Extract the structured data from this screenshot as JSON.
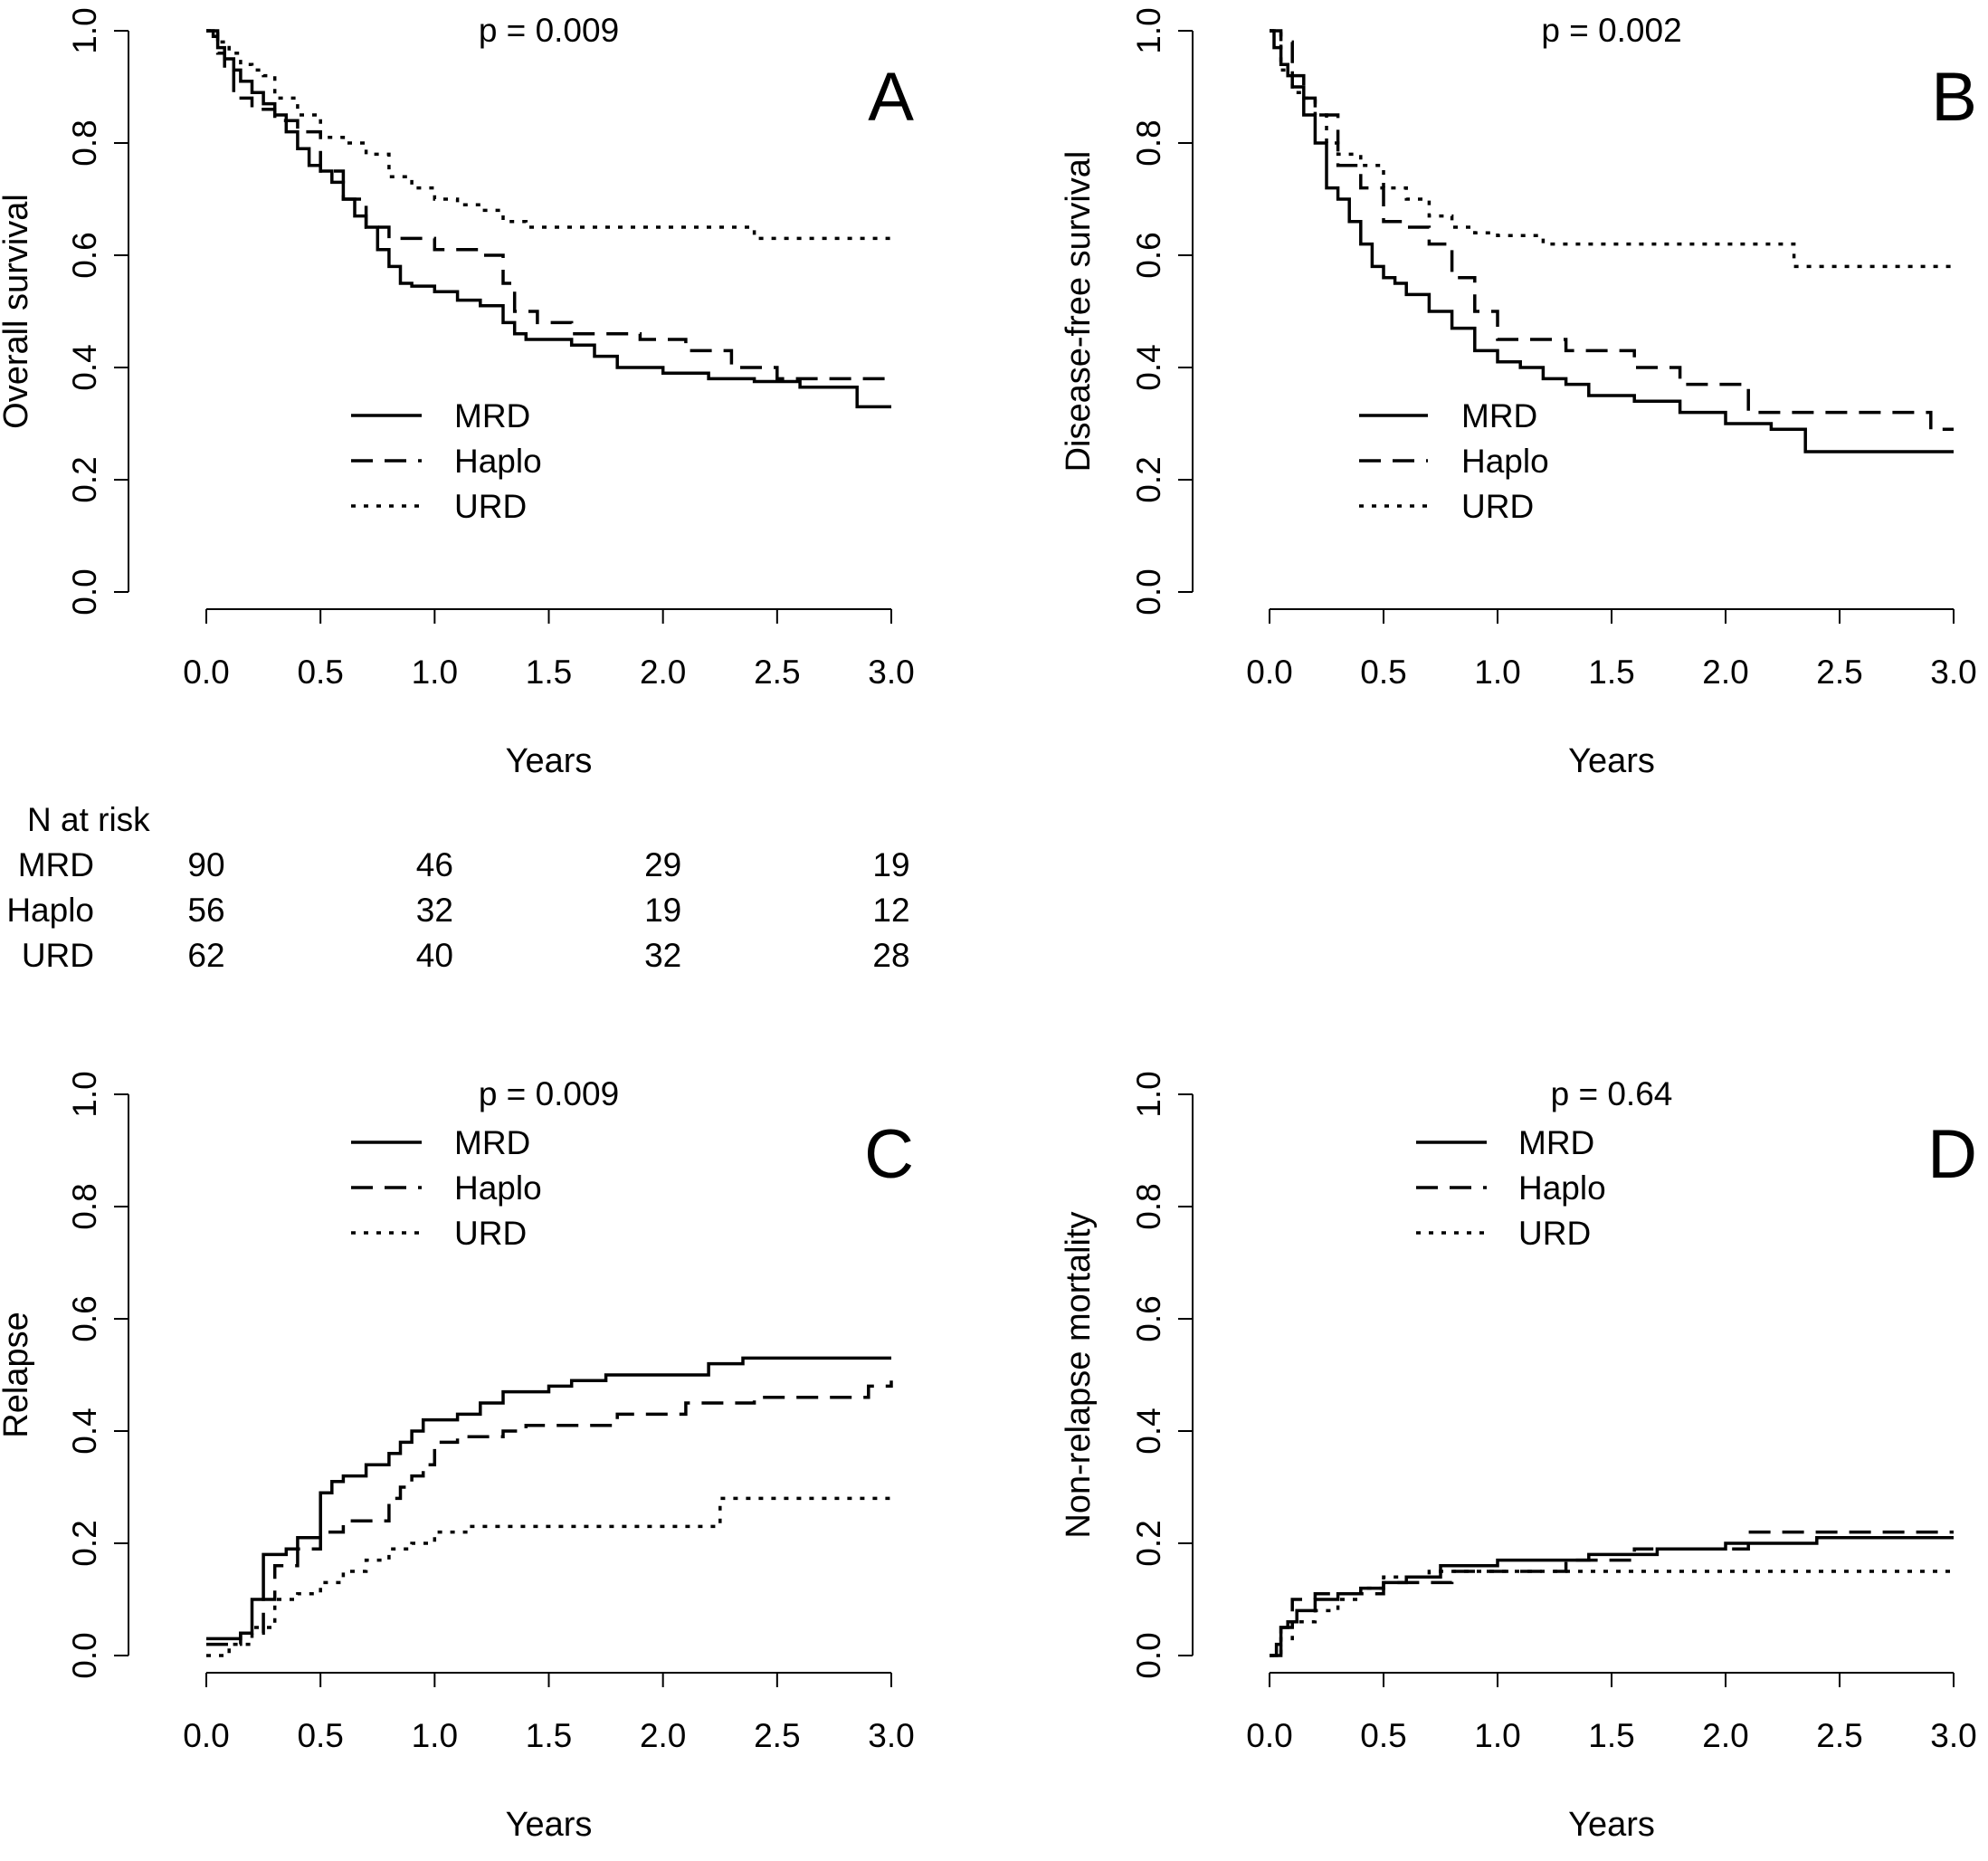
{
  "chart_data": [
    {
      "id": "A",
      "type": "line",
      "step": true,
      "panel_label": "A",
      "title": "p = 0.009",
      "xlabel": "Years",
      "ylabel": "Overall survival",
      "xlim": [
        0,
        3
      ],
      "ylim": [
        0,
        1
      ],
      "xticks": [
        "0.0",
        "0.5",
        "1.0",
        "1.5",
        "2.0",
        "2.5",
        "3.0"
      ],
      "yticks": [
        "0.0",
        "0.2",
        "0.4",
        "0.6",
        "0.8",
        "1.0"
      ],
      "legend": {
        "position": "center-left",
        "entries": [
          "MRD",
          "Haplo",
          "URD"
        ]
      },
      "series": [
        {
          "name": "MRD",
          "linestyle": "solid",
          "x": [
            0,
            0.03,
            0.05,
            0.08,
            0.12,
            0.15,
            0.2,
            0.25,
            0.3,
            0.35,
            0.4,
            0.45,
            0.5,
            0.55,
            0.6,
            0.65,
            0.7,
            0.75,
            0.8,
            0.85,
            0.9,
            1.0,
            1.1,
            1.2,
            1.3,
            1.35,
            1.4,
            1.6,
            1.7,
            1.8,
            2.0,
            2.2,
            2.4,
            2.6,
            2.85,
            3.0
          ],
          "y": [
            1.0,
            0.99,
            0.97,
            0.95,
            0.93,
            0.91,
            0.89,
            0.87,
            0.85,
            0.82,
            0.79,
            0.76,
            0.75,
            0.73,
            0.7,
            0.67,
            0.65,
            0.61,
            0.58,
            0.55,
            0.545,
            0.535,
            0.52,
            0.51,
            0.48,
            0.46,
            0.45,
            0.44,
            0.42,
            0.4,
            0.39,
            0.38,
            0.375,
            0.365,
            0.33,
            0.33
          ]
        },
        {
          "name": "Haplo",
          "linestyle": "dashed",
          "x": [
            0,
            0.05,
            0.08,
            0.12,
            0.2,
            0.3,
            0.4,
            0.5,
            0.6,
            0.7,
            0.8,
            1.0,
            1.2,
            1.3,
            1.35,
            1.45,
            1.6,
            1.9,
            2.1,
            2.3,
            2.5,
            3.0
          ],
          "y": [
            1.0,
            0.96,
            0.93,
            0.88,
            0.86,
            0.84,
            0.82,
            0.75,
            0.7,
            0.65,
            0.63,
            0.61,
            0.6,
            0.55,
            0.5,
            0.48,
            0.46,
            0.45,
            0.43,
            0.4,
            0.38,
            0.38
          ]
        },
        {
          "name": "URD",
          "linestyle": "dotted",
          "x": [
            0,
            0.05,
            0.1,
            0.15,
            0.2,
            0.25,
            0.3,
            0.4,
            0.5,
            0.6,
            0.7,
            0.8,
            0.9,
            1.0,
            1.1,
            1.2,
            1.3,
            1.4,
            2.2,
            2.4,
            3.0
          ],
          "y": [
            1.0,
            0.98,
            0.96,
            0.94,
            0.93,
            0.92,
            0.88,
            0.85,
            0.81,
            0.8,
            0.78,
            0.74,
            0.72,
            0.7,
            0.69,
            0.68,
            0.66,
            0.65,
            0.65,
            0.63,
            0.63
          ]
        }
      ]
    },
    {
      "id": "B",
      "type": "line",
      "step": true,
      "panel_label": "B",
      "title": "p = 0.002",
      "xlabel": "Years",
      "ylabel": "Disease-free survival",
      "xlim": [
        0,
        3
      ],
      "ylim": [
        0,
        1
      ],
      "xticks": [
        "0.0",
        "0.5",
        "1.0",
        "1.5",
        "2.0",
        "2.5",
        "3.0"
      ],
      "yticks": [
        "0.0",
        "0.2",
        "0.4",
        "0.6",
        "0.8",
        "1.0"
      ],
      "legend": {
        "position": "center-left",
        "entries": [
          "MRD",
          "Haplo",
          "URD"
        ]
      },
      "series": [
        {
          "name": "MRD",
          "linestyle": "solid",
          "x": [
            0,
            0.02,
            0.05,
            0.08,
            0.1,
            0.15,
            0.2,
            0.25,
            0.3,
            0.35,
            0.4,
            0.45,
            0.5,
            0.55,
            0.6,
            0.7,
            0.8,
            0.9,
            1.0,
            1.1,
            1.2,
            1.3,
            1.4,
            1.6,
            1.8,
            2.0,
            2.2,
            2.35,
            3.0
          ],
          "y": [
            1.0,
            0.97,
            0.94,
            0.92,
            0.9,
            0.85,
            0.8,
            0.72,
            0.7,
            0.66,
            0.62,
            0.58,
            0.56,
            0.55,
            0.53,
            0.5,
            0.47,
            0.43,
            0.41,
            0.4,
            0.38,
            0.37,
            0.35,
            0.34,
            0.32,
            0.3,
            0.29,
            0.25,
            0.25
          ]
        },
        {
          "name": "Haplo",
          "linestyle": "dashed",
          "x": [
            0,
            0.05,
            0.1,
            0.15,
            0.2,
            0.3,
            0.4,
            0.5,
            0.6,
            0.7,
            0.8,
            0.9,
            1.0,
            1.3,
            1.6,
            1.8,
            2.1,
            2.9,
            3.0
          ],
          "y": [
            1.0,
            0.98,
            0.92,
            0.88,
            0.85,
            0.76,
            0.72,
            0.66,
            0.65,
            0.62,
            0.56,
            0.5,
            0.45,
            0.43,
            0.4,
            0.37,
            0.32,
            0.29,
            0.29
          ]
        },
        {
          "name": "URD",
          "linestyle": "dotted",
          "x": [
            0,
            0.05,
            0.1,
            0.15,
            0.2,
            0.25,
            0.3,
            0.4,
            0.5,
            0.6,
            0.7,
            0.8,
            0.9,
            1.0,
            1.2,
            2.2,
            2.3,
            3.0
          ],
          "y": [
            1.0,
            0.93,
            0.89,
            0.88,
            0.85,
            0.8,
            0.78,
            0.76,
            0.72,
            0.7,
            0.67,
            0.65,
            0.64,
            0.635,
            0.62,
            0.62,
            0.58,
            0.58
          ]
        }
      ]
    },
    {
      "id": "C",
      "type": "line",
      "step": true,
      "panel_label": "C",
      "title": "p = 0.009",
      "xlabel": "Years",
      "ylabel": "Relapse",
      "xlim": [
        0,
        3
      ],
      "ylim": [
        0,
        1
      ],
      "xticks": [
        "0.0",
        "0.5",
        "1.0",
        "1.5",
        "2.0",
        "2.5",
        "3.0"
      ],
      "yticks": [
        "0.0",
        "0.2",
        "0.4",
        "0.6",
        "0.8",
        "1.0"
      ],
      "legend": {
        "position": "top-center",
        "entries": [
          "MRD",
          "Haplo",
          "URD"
        ]
      },
      "series": [
        {
          "name": "MRD",
          "linestyle": "solid",
          "x": [
            0,
            0.15,
            0.2,
            0.25,
            0.35,
            0.4,
            0.5,
            0.55,
            0.6,
            0.7,
            0.8,
            0.85,
            0.9,
            0.95,
            1.1,
            1.2,
            1.3,
            1.5,
            1.6,
            1.75,
            2.2,
            2.35,
            3.0
          ],
          "y": [
            0.03,
            0.04,
            0.1,
            0.18,
            0.19,
            0.21,
            0.29,
            0.31,
            0.32,
            0.34,
            0.36,
            0.38,
            0.4,
            0.42,
            0.43,
            0.45,
            0.47,
            0.48,
            0.49,
            0.5,
            0.52,
            0.53,
            0.53
          ]
        },
        {
          "name": "Haplo",
          "linestyle": "dashed",
          "x": [
            0,
            0.15,
            0.25,
            0.3,
            0.4,
            0.5,
            0.6,
            0.8,
            0.85,
            0.9,
            0.95,
            1.0,
            1.1,
            1.3,
            1.4,
            1.8,
            2.1,
            2.4,
            2.9,
            3.0
          ],
          "y": [
            0.02,
            0.04,
            0.1,
            0.16,
            0.19,
            0.22,
            0.24,
            0.28,
            0.3,
            0.32,
            0.34,
            0.38,
            0.39,
            0.4,
            0.41,
            0.43,
            0.45,
            0.46,
            0.48,
            0.49
          ]
        },
        {
          "name": "URD",
          "linestyle": "dotted",
          "x": [
            0,
            0.1,
            0.2,
            0.3,
            0.4,
            0.5,
            0.6,
            0.7,
            0.8,
            0.9,
            1.0,
            1.15,
            2.2,
            2.25,
            3.0
          ],
          "y": [
            0.0,
            0.02,
            0.05,
            0.1,
            0.11,
            0.13,
            0.15,
            0.17,
            0.19,
            0.2,
            0.22,
            0.23,
            0.23,
            0.28,
            0.28
          ]
        }
      ]
    },
    {
      "id": "D",
      "type": "line",
      "step": true,
      "panel_label": "D",
      "title": "p = 0.64",
      "xlabel": "Years",
      "ylabel": "Non-relapse mortality",
      "xlim": [
        0,
        3
      ],
      "ylim": [
        0,
        1
      ],
      "xticks": [
        "0.0",
        "0.5",
        "1.0",
        "1.5",
        "2.0",
        "2.5",
        "3.0"
      ],
      "yticks": [
        "0.0",
        "0.2",
        "0.4",
        "0.6",
        "0.8",
        "1.0"
      ],
      "legend": {
        "position": "top-center",
        "entries": [
          "MRD",
          "Haplo",
          "URD"
        ]
      },
      "series": [
        {
          "name": "MRD",
          "linestyle": "solid",
          "x": [
            0,
            0.03,
            0.05,
            0.08,
            0.12,
            0.2,
            0.3,
            0.4,
            0.5,
            0.6,
            0.75,
            1.0,
            1.4,
            1.7,
            2.0,
            2.4,
            3.0
          ],
          "y": [
            0.0,
            0.02,
            0.05,
            0.06,
            0.08,
            0.1,
            0.11,
            0.12,
            0.13,
            0.14,
            0.16,
            0.17,
            0.18,
            0.19,
            0.2,
            0.21,
            0.21
          ]
        },
        {
          "name": "Haplo",
          "linestyle": "dashed",
          "x": [
            0,
            0.05,
            0.1,
            0.2,
            0.5,
            0.8,
            1.3,
            1.6,
            2.1,
            3.0
          ],
          "y": [
            0.0,
            0.05,
            0.1,
            0.11,
            0.13,
            0.15,
            0.17,
            0.19,
            0.22,
            0.22
          ]
        },
        {
          "name": "URD",
          "linestyle": "dotted",
          "x": [
            0,
            0.05,
            0.1,
            0.2,
            0.3,
            0.4,
            0.5,
            0.7,
            3.0
          ],
          "y": [
            0.0,
            0.03,
            0.06,
            0.08,
            0.1,
            0.12,
            0.14,
            0.15,
            0.15
          ]
        }
      ]
    }
  ],
  "risk_table": {
    "title": "N at risk",
    "times": [
      0,
      1,
      2,
      3
    ],
    "rows": [
      {
        "label": "MRD",
        "values": [
          "90",
          "46",
          "29",
          "19"
        ]
      },
      {
        "label": "Haplo",
        "values": [
          "56",
          "32",
          "19",
          "12"
        ]
      },
      {
        "label": "URD",
        "values": [
          "62",
          "40",
          "32",
          "28"
        ]
      }
    ]
  }
}
